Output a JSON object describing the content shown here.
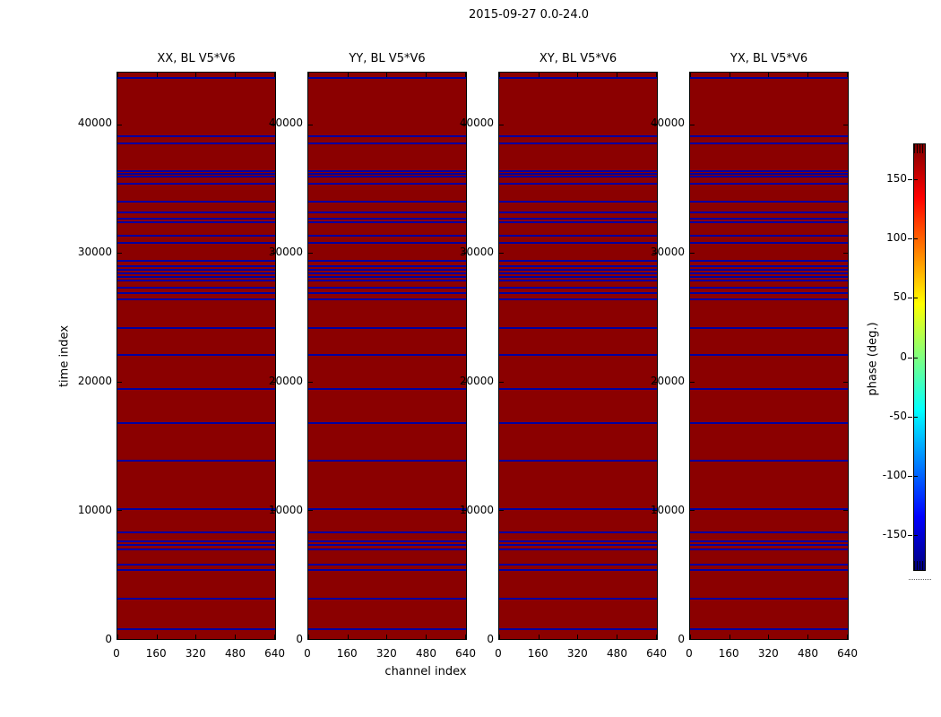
{
  "figure": {
    "title": "2015-09-27 0.0-24.0",
    "xlabel": "channel index",
    "ylabel": "time index",
    "colorbar_label": "phase (deg.)"
  },
  "chart_data": {
    "type": "heatmap",
    "title": "2015-09-27 0.0-24.0",
    "xlabel": "channel index",
    "ylabel": "time index",
    "panels": [
      {
        "pol": "xx",
        "label": "XX, BL V5*V6"
      },
      {
        "pol": "yy",
        "label": "YY, BL V5*V6"
      },
      {
        "pol": "xy",
        "label": "XY, BL V5*V6"
      },
      {
        "pol": "yx",
        "label": "YX, BL V5*V6"
      }
    ],
    "x_ticks": [
      0,
      160,
      320,
      480,
      640
    ],
    "y_ticks": [
      0,
      10000,
      20000,
      30000,
      40000
    ],
    "xlim": [
      0,
      645
    ],
    "ylim": [
      0,
      44000
    ],
    "background_phase_deg": 180,
    "flagged_row_phase_deg": -180,
    "flagged_time_indices": [
      920,
      3280,
      5460,
      5880,
      7080,
      7410,
      7730,
      8420,
      10200,
      13960,
      16870,
      19510,
      22150,
      24230,
      26460,
      26920,
      27360,
      27890,
      28170,
      28450,
      28730,
      29000,
      29440,
      30830,
      31390,
      32430,
      32710,
      33190,
      34030,
      35420,
      35970,
      36160,
      36390,
      38540,
      39090,
      43580
    ],
    "colorbar": {
      "label": "phase (deg.)",
      "ticks": [
        150,
        100,
        50,
        0,
        -50,
        -100,
        -150
      ],
      "range": [
        -180,
        180
      ],
      "colormap": "jet"
    },
    "colors": {
      "panel_fill": "#8b0000",
      "flagged_line": "#0000a0",
      "jet_stops": [
        "#7f0000",
        "#ff0000",
        "#ffff00",
        "#00ffff",
        "#0000ff",
        "#00007f"
      ]
    }
  }
}
